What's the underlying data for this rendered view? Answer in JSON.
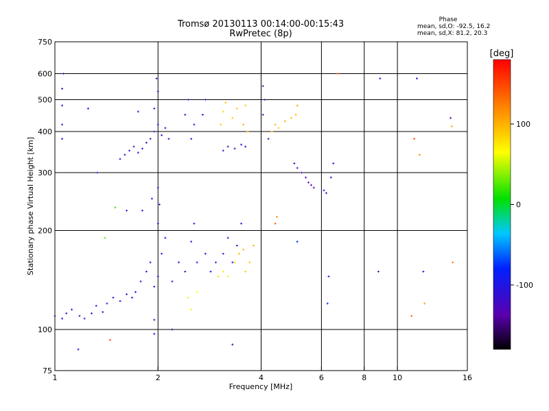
{
  "header": {
    "title_line1": "Tromsø 20130113 00:14:00-00:15:43",
    "title_line2": "RwPretec (8p)",
    "phase_title": "Phase",
    "phase_line1": "mean, sd,O: -92.5, 16.2",
    "phase_line2": "mean, sd,X:  81.2, 20.3"
  },
  "chart_data": {
    "type": "scatter",
    "xlabel": "Frequency [MHz]",
    "ylabel": "Stationary phase Virtual Height [km]",
    "xscale": "log",
    "yscale": "log",
    "xlim": [
      1,
      16
    ],
    "ylim": [
      75,
      750
    ],
    "x_ticks": [
      {
        "value": 1,
        "label": "1"
      },
      {
        "value": 2,
        "label": "2"
      },
      {
        "value": 4,
        "label": "4"
      },
      {
        "value": 6,
        "label": "6"
      },
      {
        "value": 8,
        "label": "8"
      },
      {
        "value": 10,
        "label": "10"
      },
      {
        "value": 16,
        "label": "16"
      }
    ],
    "x_grid": [
      2,
      4,
      6,
      8,
      10
    ],
    "y_ticks": [
      {
        "value": 75,
        "label": "75"
      },
      {
        "value": 100,
        "label": "100"
      },
      {
        "value": 200,
        "label": "200"
      },
      {
        "value": 300,
        "label": "300"
      },
      {
        "value": 400,
        "label": "400"
      },
      {
        "value": 500,
        "label": "500"
      },
      {
        "value": 600,
        "label": "600"
      },
      {
        "value": 750,
        "label": "750"
      }
    ],
    "y_grid": [
      100,
      200,
      300,
      400,
      500,
      600
    ],
    "colorbar": {
      "label": "[deg]",
      "range": [
        -180,
        180
      ],
      "ticks": [
        {
          "value": 100,
          "label": "100"
        },
        {
          "value": 0,
          "label": "0"
        },
        {
          "value": -100,
          "label": "-100"
        }
      ]
    },
    "series": [
      {
        "x": 1.0,
        "y": 110,
        "phase": -115
      },
      {
        "x": 1.05,
        "y": 108,
        "phase": -110
      },
      {
        "x": 1.08,
        "y": 112,
        "phase": -105
      },
      {
        "x": 1.12,
        "y": 115,
        "phase": -100
      },
      {
        "x": 1.18,
        "y": 110,
        "phase": -120
      },
      {
        "x": 1.22,
        "y": 108,
        "phase": -115
      },
      {
        "x": 1.28,
        "y": 112,
        "phase": -110
      },
      {
        "x": 1.32,
        "y": 118,
        "phase": -105
      },
      {
        "x": 1.38,
        "y": 113,
        "phase": -112
      },
      {
        "x": 1.42,
        "y": 120,
        "phase": -118
      },
      {
        "x": 1.48,
        "y": 125,
        "phase": -110
      },
      {
        "x": 1.55,
        "y": 122,
        "phase": -115
      },
      {
        "x": 1.62,
        "y": 128,
        "phase": -120
      },
      {
        "x": 1.68,
        "y": 125,
        "phase": -112
      },
      {
        "x": 1.72,
        "y": 130,
        "phase": -108
      },
      {
        "x": 1.78,
        "y": 140,
        "phase": -115
      },
      {
        "x": 1.85,
        "y": 150,
        "phase": -110
      },
      {
        "x": 1.9,
        "y": 160,
        "phase": -105
      },
      {
        "x": 1.95,
        "y": 135,
        "phase": -120
      },
      {
        "x": 2.0,
        "y": 145,
        "phase": -118
      },
      {
        "x": 2.05,
        "y": 170,
        "phase": -112
      },
      {
        "x": 2.1,
        "y": 190,
        "phase": -110
      },
      {
        "x": 2.0,
        "y": 210,
        "phase": -115
      },
      {
        "x": 2.02,
        "y": 240,
        "phase": -120
      },
      {
        "x": 2.0,
        "y": 270,
        "phase": -118
      },
      {
        "x": 1.92,
        "y": 250,
        "phase": -112
      },
      {
        "x": 1.8,
        "y": 230,
        "phase": -115
      },
      {
        "x": 1.62,
        "y": 230,
        "phase": -110
      },
      {
        "x": 2.2,
        "y": 140,
        "phase": -110
      },
      {
        "x": 2.3,
        "y": 160,
        "phase": -112
      },
      {
        "x": 2.4,
        "y": 150,
        "phase": -118
      },
      {
        "x": 2.5,
        "y": 185,
        "phase": -108
      },
      {
        "x": 2.55,
        "y": 210,
        "phase": -110
      },
      {
        "x": 2.6,
        "y": 160,
        "phase": -115
      },
      {
        "x": 2.75,
        "y": 170,
        "phase": -112
      },
      {
        "x": 2.85,
        "y": 150,
        "phase": -110
      },
      {
        "x": 2.95,
        "y": 160,
        "phase": -118
      },
      {
        "x": 3.1,
        "y": 170,
        "phase": -112
      },
      {
        "x": 3.2,
        "y": 190,
        "phase": -110
      },
      {
        "x": 3.3,
        "y": 160,
        "phase": -115
      },
      {
        "x": 3.4,
        "y": 180,
        "phase": -120
      },
      {
        "x": 3.5,
        "y": 210,
        "phase": -112
      },
      {
        "x": 2.45,
        "y": 125,
        "phase": 60
      },
      {
        "x": 2.5,
        "y": 115,
        "phase": 70
      },
      {
        "x": 2.6,
        "y": 130,
        "phase": 65
      },
      {
        "x": 3.0,
        "y": 145,
        "phase": 80
      },
      {
        "x": 3.1,
        "y": 150,
        "phase": 75
      },
      {
        "x": 3.2,
        "y": 145,
        "phase": 70
      },
      {
        "x": 3.35,
        "y": 160,
        "phase": 85
      },
      {
        "x": 3.45,
        "y": 170,
        "phase": 90
      },
      {
        "x": 3.55,
        "y": 175,
        "phase": 95
      },
      {
        "x": 3.6,
        "y": 150,
        "phase": 88
      },
      {
        "x": 3.7,
        "y": 160,
        "phase": 92
      },
      {
        "x": 3.8,
        "y": 180,
        "phase": 100
      },
      {
        "x": 1.55,
        "y": 330,
        "phase": -120
      },
      {
        "x": 1.6,
        "y": 340,
        "phase": -115
      },
      {
        "x": 1.65,
        "y": 350,
        "phase": -110
      },
      {
        "x": 1.7,
        "y": 360,
        "phase": -118
      },
      {
        "x": 1.75,
        "y": 345,
        "phase": -112
      },
      {
        "x": 1.8,
        "y": 355,
        "phase": -108
      },
      {
        "x": 1.85,
        "y": 370,
        "phase": -115
      },
      {
        "x": 1.9,
        "y": 380,
        "phase": -120
      },
      {
        "x": 1.95,
        "y": 400,
        "phase": -112
      },
      {
        "x": 2.0,
        "y": 420,
        "phase": -110
      },
      {
        "x": 2.05,
        "y": 390,
        "phase": -115
      },
      {
        "x": 2.1,
        "y": 410,
        "phase": -118
      },
      {
        "x": 2.15,
        "y": 380,
        "phase": -112
      },
      {
        "x": 1.95,
        "y": 470,
        "phase": -110
      },
      {
        "x": 2.0,
        "y": 530,
        "phase": -120
      },
      {
        "x": 1.98,
        "y": 580,
        "phase": -115
      },
      {
        "x": 1.75,
        "y": 460,
        "phase": -110
      },
      {
        "x": 2.4,
        "y": 450,
        "phase": -118
      },
      {
        "x": 2.45,
        "y": 500,
        "phase": -112
      },
      {
        "x": 2.5,
        "y": 380,
        "phase": -115
      },
      {
        "x": 2.55,
        "y": 420,
        "phase": -110
      },
      {
        "x": 2.7,
        "y": 450,
        "phase": -118
      },
      {
        "x": 2.75,
        "y": 500,
        "phase": -112
      },
      {
        "x": 3.1,
        "y": 350,
        "phase": -115
      },
      {
        "x": 3.2,
        "y": 360,
        "phase": -120
      },
      {
        "x": 3.35,
        "y": 355,
        "phase": -112
      },
      {
        "x": 3.5,
        "y": 365,
        "phase": -110
      },
      {
        "x": 3.6,
        "y": 360,
        "phase": -115
      },
      {
        "x": 3.05,
        "y": 420,
        "phase": 90
      },
      {
        "x": 3.1,
        "y": 460,
        "phase": 85
      },
      {
        "x": 3.15,
        "y": 490,
        "phase": 95
      },
      {
        "x": 3.3,
        "y": 440,
        "phase": 88
      },
      {
        "x": 3.4,
        "y": 470,
        "phase": 92
      },
      {
        "x": 3.55,
        "y": 420,
        "phase": 100
      },
      {
        "x": 3.6,
        "y": 480,
        "phase": 90
      },
      {
        "x": 3.65,
        "y": 400,
        "phase": 105
      },
      {
        "x": 4.3,
        "y": 400,
        "phase": 95
      },
      {
        "x": 4.4,
        "y": 420,
        "phase": 100
      },
      {
        "x": 4.5,
        "y": 410,
        "phase": 90
      },
      {
        "x": 4.7,
        "y": 430,
        "phase": 105
      },
      {
        "x": 4.9,
        "y": 440,
        "phase": 95
      },
      {
        "x": 5.05,
        "y": 450,
        "phase": 100
      },
      {
        "x": 5.1,
        "y": 480,
        "phase": 110
      },
      {
        "x": 4.05,
        "y": 550,
        "phase": -130
      },
      {
        "x": 4.1,
        "y": 500,
        "phase": -125
      },
      {
        "x": 4.05,
        "y": 450,
        "phase": -128
      },
      {
        "x": 4.2,
        "y": 380,
        "phase": -130
      },
      {
        "x": 5.0,
        "y": 320,
        "phase": -120
      },
      {
        "x": 5.1,
        "y": 310,
        "phase": -125
      },
      {
        "x": 5.25,
        "y": 300,
        "phase": -130
      },
      {
        "x": 5.4,
        "y": 290,
        "phase": -135
      },
      {
        "x": 5.5,
        "y": 280,
        "phase": -132
      },
      {
        "x": 5.6,
        "y": 275,
        "phase": -130
      },
      {
        "x": 5.7,
        "y": 270,
        "phase": -128
      },
      {
        "x": 1.05,
        "y": 540,
        "phase": -120
      },
      {
        "x": 1.05,
        "y": 480,
        "phase": -118
      },
      {
        "x": 1.05,
        "y": 420,
        "phase": -125
      },
      {
        "x": 1.05,
        "y": 380,
        "phase": -115
      },
      {
        "x": 1.06,
        "y": 600,
        "phase": -110
      },
      {
        "x": 1.25,
        "y": 470,
        "phase": -90
      },
      {
        "x": 2.2,
        "y": 100,
        "phase": -160
      },
      {
        "x": 1.95,
        "y": 107,
        "phase": -115
      },
      {
        "x": 1.95,
        "y": 97,
        "phase": -90
      },
      {
        "x": 1.45,
        "y": 93,
        "phase": 150
      },
      {
        "x": 1.17,
        "y": 87,
        "phase": -90
      },
      {
        "x": 3.3,
        "y": 90,
        "phase": -150
      },
      {
        "x": 4.4,
        "y": 210,
        "phase": 140
      },
      {
        "x": 4.45,
        "y": 220,
        "phase": 120
      },
      {
        "x": 5.1,
        "y": 185,
        "phase": -80
      },
      {
        "x": 6.2,
        "y": 260,
        "phase": -110
      },
      {
        "x": 6.1,
        "y": 265,
        "phase": -100
      },
      {
        "x": 6.5,
        "y": 320,
        "phase": -95
      },
      {
        "x": 6.4,
        "y": 290,
        "phase": -120
      },
      {
        "x": 6.3,
        "y": 145,
        "phase": -90
      },
      {
        "x": 6.25,
        "y": 120,
        "phase": -80
      },
      {
        "x": 6.7,
        "y": 600,
        "phase": 140
      },
      {
        "x": 8.9,
        "y": 580,
        "phase": -95
      },
      {
        "x": 8.8,
        "y": 150,
        "phase": -130
      },
      {
        "x": 11.0,
        "y": 110,
        "phase": 140
      },
      {
        "x": 11.6,
        "y": 340,
        "phase": 120
      },
      {
        "x": 11.2,
        "y": 380,
        "phase": 150
      },
      {
        "x": 11.4,
        "y": 580,
        "phase": -110
      },
      {
        "x": 11.9,
        "y": 150,
        "phase": -100
      },
      {
        "x": 12.0,
        "y": 120,
        "phase": 110
      },
      {
        "x": 14.3,
        "y": 440,
        "phase": -140
      },
      {
        "x": 14.4,
        "y": 415,
        "phase": 110
      },
      {
        "x": 14.5,
        "y": 160,
        "phase": 130
      },
      {
        "x": 1.33,
        "y": 300,
        "phase": -120
      },
      {
        "x": 1.5,
        "y": 235,
        "phase": 20
      },
      {
        "x": 1.4,
        "y": 190,
        "phase": 30
      }
    ]
  }
}
